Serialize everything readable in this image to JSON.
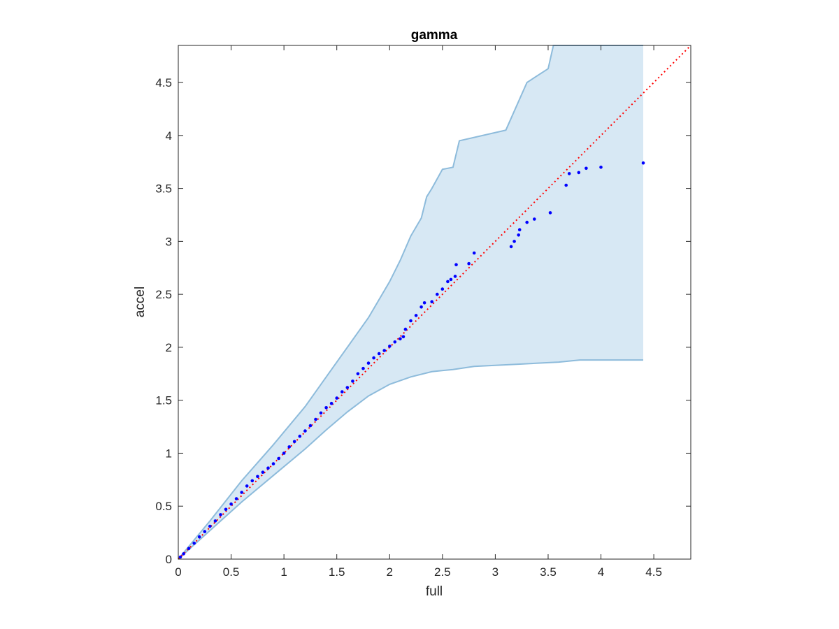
{
  "chart_data": {
    "type": "scatter",
    "title": "gamma",
    "xlabel": "full",
    "ylabel": "accel",
    "xlim": [
      0,
      4.85
    ],
    "ylim": [
      0,
      4.85
    ],
    "xticks": [
      0,
      0.5,
      1,
      1.5,
      2,
      2.5,
      3,
      3.5,
      4,
      4.5
    ],
    "yticks": [
      0,
      0.5,
      1,
      1.5,
      2,
      2.5,
      3,
      3.5,
      4,
      4.5
    ],
    "xtick_labels": [
      "0",
      "0.5",
      "1",
      "1.5",
      "2",
      "2.5",
      "3",
      "3.5",
      "4",
      "4.5"
    ],
    "ytick_labels": [
      "0",
      "0.5",
      "1",
      "1.5",
      "2",
      "2.5",
      "3",
      "3.5",
      "4",
      "4.5"
    ],
    "grid": false,
    "reference_line": {
      "style": "dotted",
      "color": "#ff0000",
      "from": [
        0,
        0
      ],
      "to": [
        4.85,
        4.85
      ]
    },
    "band_upper": [
      [
        0,
        0
      ],
      [
        0.3,
        0.36
      ],
      [
        0.6,
        0.74
      ],
      [
        0.9,
        1.08
      ],
      [
        1.2,
        1.44
      ],
      [
        1.4,
        1.72
      ],
      [
        1.6,
        2.0
      ],
      [
        1.8,
        2.28
      ],
      [
        2.0,
        2.62
      ],
      [
        2.1,
        2.82
      ],
      [
        2.2,
        3.05
      ],
      [
        2.3,
        3.22
      ],
      [
        2.35,
        3.42
      ],
      [
        2.4,
        3.5
      ],
      [
        2.5,
        3.68
      ],
      [
        2.6,
        3.7
      ],
      [
        2.66,
        3.95
      ],
      [
        3.1,
        4.05
      ],
      [
        3.3,
        4.5
      ],
      [
        3.5,
        4.63
      ],
      [
        3.55,
        4.85
      ],
      [
        4.4,
        4.85
      ]
    ],
    "band_lower": [
      [
        0,
        0
      ],
      [
        0.3,
        0.27
      ],
      [
        0.6,
        0.54
      ],
      [
        0.9,
        0.79
      ],
      [
        1.2,
        1.04
      ],
      [
        1.4,
        1.22
      ],
      [
        1.6,
        1.39
      ],
      [
        1.8,
        1.54
      ],
      [
        2.0,
        1.65
      ],
      [
        2.2,
        1.72
      ],
      [
        2.4,
        1.77
      ],
      [
        2.6,
        1.79
      ],
      [
        2.8,
        1.82
      ],
      [
        3.2,
        1.84
      ],
      [
        3.6,
        1.86
      ],
      [
        3.8,
        1.88
      ],
      [
        4.4,
        1.88
      ]
    ],
    "series": [
      {
        "color": "#0000ff",
        "points": [
          [
            0.02,
            0.02
          ],
          [
            0.05,
            0.05
          ],
          [
            0.1,
            0.1
          ],
          [
            0.15,
            0.15
          ],
          [
            0.2,
            0.21
          ],
          [
            0.25,
            0.26
          ],
          [
            0.3,
            0.31
          ],
          [
            0.35,
            0.36
          ],
          [
            0.4,
            0.42
          ],
          [
            0.45,
            0.47
          ],
          [
            0.5,
            0.52
          ],
          [
            0.55,
            0.57
          ],
          [
            0.6,
            0.63
          ],
          [
            0.65,
            0.69
          ],
          [
            0.7,
            0.74
          ],
          [
            0.75,
            0.78
          ],
          [
            0.8,
            0.82
          ],
          [
            0.85,
            0.86
          ],
          [
            0.9,
            0.9
          ],
          [
            0.95,
            0.95
          ],
          [
            1.0,
            1.0
          ],
          [
            1.05,
            1.06
          ],
          [
            1.1,
            1.11
          ],
          [
            1.15,
            1.16
          ],
          [
            1.2,
            1.21
          ],
          [
            1.25,
            1.26
          ],
          [
            1.3,
            1.32
          ],
          [
            1.35,
            1.38
          ],
          [
            1.4,
            1.43
          ],
          [
            1.45,
            1.47
          ],
          [
            1.5,
            1.52
          ],
          [
            1.55,
            1.58
          ],
          [
            1.6,
            1.62
          ],
          [
            1.65,
            1.68
          ],
          [
            1.7,
            1.75
          ],
          [
            1.75,
            1.8
          ],
          [
            1.8,
            1.85
          ],
          [
            1.85,
            1.9
          ],
          [
            1.9,
            1.94
          ],
          [
            1.95,
            1.97
          ],
          [
            2.0,
            2.01
          ],
          [
            2.05,
            2.05
          ],
          [
            2.1,
            2.08
          ],
          [
            2.13,
            2.1
          ],
          [
            2.15,
            2.17
          ],
          [
            2.2,
            2.25
          ],
          [
            2.25,
            2.3
          ],
          [
            2.3,
            2.38
          ],
          [
            2.33,
            2.42
          ],
          [
            2.4,
            2.43
          ],
          [
            2.45,
            2.5
          ],
          [
            2.5,
            2.55
          ],
          [
            2.55,
            2.62
          ],
          [
            2.58,
            2.64
          ],
          [
            2.62,
            2.67
          ],
          [
            2.63,
            2.78
          ],
          [
            2.75,
            2.79
          ],
          [
            2.8,
            2.89
          ],
          [
            3.15,
            2.95
          ],
          [
            3.18,
            3.0
          ],
          [
            3.22,
            3.06
          ],
          [
            3.23,
            3.11
          ],
          [
            3.3,
            3.18
          ],
          [
            3.37,
            3.21
          ],
          [
            3.52,
            3.27
          ],
          [
            3.67,
            3.53
          ],
          [
            3.7,
            3.64
          ],
          [
            3.79,
            3.65
          ],
          [
            3.86,
            3.69
          ],
          [
            4.0,
            3.7
          ],
          [
            4.4,
            3.74
          ]
        ]
      }
    ]
  }
}
